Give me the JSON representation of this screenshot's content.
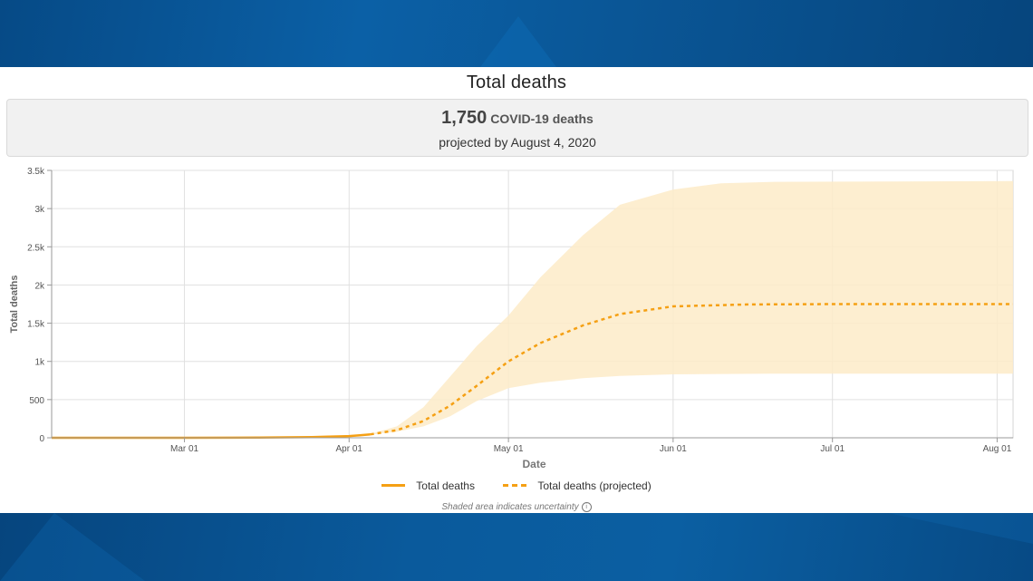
{
  "panel": {
    "title": "Total deaths",
    "summary_value": "1,750",
    "summary_unit": "COVID-19 deaths",
    "summary_sub": "projected by August 4, 2020",
    "note": "Shaded area indicates uncertainty",
    "note_icon": "info-icon"
  },
  "colors": {
    "series": "#f5a014",
    "band": "#fdebc8",
    "grid": "#e0e0e0",
    "background_blue": "#0b5ea3"
  },
  "chart_data": {
    "type": "line",
    "title": "",
    "xlabel": "Date",
    "ylabel": "Total deaths",
    "ylim": [
      0,
      3500
    ],
    "x_range": [
      "2020-02-05",
      "2020-08-04"
    ],
    "x_ticks": [
      {
        "date": "2020-03-01",
        "label": "Mar 01"
      },
      {
        "date": "2020-04-01",
        "label": "Apr 01"
      },
      {
        "date": "2020-05-01",
        "label": "May 01"
      },
      {
        "date": "2020-06-01",
        "label": "Jun 01"
      },
      {
        "date": "2020-07-01",
        "label": "Jul 01"
      },
      {
        "date": "2020-08-01",
        "label": "Aug 01"
      }
    ],
    "y_ticks": [
      {
        "value": 0,
        "label": "0"
      },
      {
        "value": 500,
        "label": "500"
      },
      {
        "value": 1000,
        "label": "1k"
      },
      {
        "value": 1500,
        "label": "1.5k"
      },
      {
        "value": 2000,
        "label": "2k"
      },
      {
        "value": 2500,
        "label": "2.5k"
      },
      {
        "value": 3000,
        "label": "3k"
      },
      {
        "value": 3500,
        "label": "3.5k"
      }
    ],
    "grid": true,
    "legend_position": "bottom-center",
    "series": [
      {
        "name": "Total deaths",
        "style": "solid",
        "points": [
          [
            "2020-02-05",
            0
          ],
          [
            "2020-03-01",
            0
          ],
          [
            "2020-03-10",
            1
          ],
          [
            "2020-03-15",
            3
          ],
          [
            "2020-03-20",
            6
          ],
          [
            "2020-03-25",
            10
          ],
          [
            "2020-03-28",
            14
          ],
          [
            "2020-04-01",
            22
          ],
          [
            "2020-04-03",
            33
          ],
          [
            "2020-04-05",
            45
          ]
        ]
      },
      {
        "name": "Total deaths (projected)",
        "style": "dashed",
        "points": [
          [
            "2020-04-05",
            45
          ],
          [
            "2020-04-10",
            100
          ],
          [
            "2020-04-15",
            220
          ],
          [
            "2020-04-20",
            420
          ],
          [
            "2020-04-25",
            680
          ],
          [
            "2020-05-01",
            1000
          ],
          [
            "2020-05-07",
            1240
          ],
          [
            "2020-05-15",
            1470
          ],
          [
            "2020-05-22",
            1620
          ],
          [
            "2020-06-01",
            1720
          ],
          [
            "2020-06-15",
            1745
          ],
          [
            "2020-07-01",
            1750
          ],
          [
            "2020-08-04",
            1750
          ]
        ]
      }
    ],
    "uncertainty_band": {
      "upper": [
        [
          "2020-04-05",
          50
        ],
        [
          "2020-04-10",
          150
        ],
        [
          "2020-04-15",
          400
        ],
        [
          "2020-04-20",
          800
        ],
        [
          "2020-04-25",
          1200
        ],
        [
          "2020-05-01",
          1600
        ],
        [
          "2020-05-07",
          2100
        ],
        [
          "2020-05-15",
          2650
        ],
        [
          "2020-05-22",
          3050
        ],
        [
          "2020-06-01",
          3250
        ],
        [
          "2020-06-10",
          3330
        ],
        [
          "2020-06-20",
          3350
        ],
        [
          "2020-08-04",
          3360
        ]
      ],
      "lower": [
        [
          "2020-04-05",
          40
        ],
        [
          "2020-04-10",
          80
        ],
        [
          "2020-04-15",
          150
        ],
        [
          "2020-04-20",
          280
        ],
        [
          "2020-04-25",
          480
        ],
        [
          "2020-05-01",
          650
        ],
        [
          "2020-05-07",
          720
        ],
        [
          "2020-05-15",
          780
        ],
        [
          "2020-05-22",
          810
        ],
        [
          "2020-06-01",
          830
        ],
        [
          "2020-06-20",
          840
        ],
        [
          "2020-08-04",
          840
        ]
      ]
    }
  }
}
